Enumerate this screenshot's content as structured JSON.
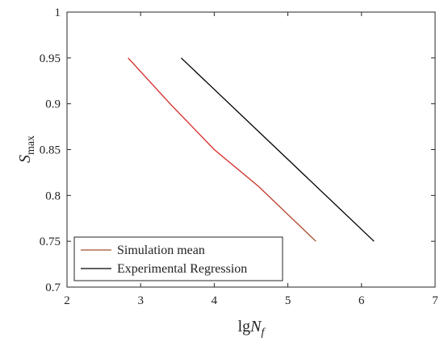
{
  "chart_data": {
    "type": "line",
    "title": "",
    "xlabel": {
      "main": "lg",
      "italic": "N",
      "sub": "f"
    },
    "ylabel": {
      "italic": "S",
      "sub": "max"
    },
    "xlim": [
      2,
      7
    ],
    "ylim": [
      0.7,
      1
    ],
    "xticks": [
      2,
      3,
      4,
      5,
      6,
      7
    ],
    "yticks": [
      0.7,
      0.75,
      0.8,
      0.85,
      0.9,
      0.95,
      1
    ],
    "xtick_labels": [
      "2",
      "3",
      "4",
      "5",
      "6",
      "7"
    ],
    "ytick_labels": [
      "0.7",
      "0.75",
      "0.8",
      "0.85",
      "0.9",
      "0.95",
      "1"
    ],
    "grid": false,
    "legend_position": "bottom-left",
    "series": [
      {
        "name": "Simulation mean",
        "color": "#d62828",
        "end_color": "#a0522d",
        "x": [
          2.83,
          3.4,
          4.0,
          4.6,
          5.38
        ],
        "y": [
          0.95,
          0.9,
          0.85,
          0.81,
          0.75
        ]
      },
      {
        "name": "Experimental Regression",
        "color": "#000000",
        "x": [
          3.55,
          6.17
        ],
        "y": [
          0.95,
          0.75
        ]
      }
    ]
  }
}
